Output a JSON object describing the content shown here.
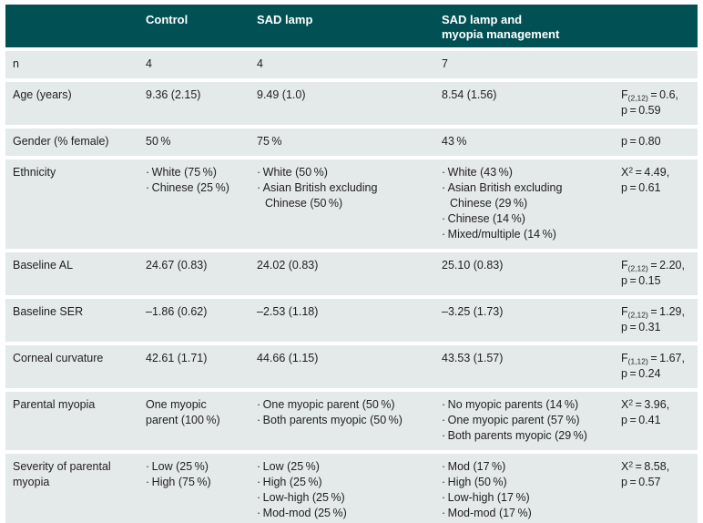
{
  "colors": {
    "header_bg": "#005054",
    "row_bg": "#e4e9ea",
    "text": "#1f1f1f",
    "header_text": "#ffffff"
  },
  "header": {
    "col1": "",
    "col2": "Control",
    "col3": "SAD lamp",
    "col4_line1": "SAD lamp and",
    "col4_line2": "myopia management",
    "col5": ""
  },
  "rows": [
    {
      "label": "n",
      "groups": [
        {
          "bullets": false,
          "items": [
            "4"
          ]
        },
        {
          "bullets": false,
          "items": [
            "4"
          ]
        },
        {
          "bullets": false,
          "items": [
            "7"
          ]
        }
      ],
      "stat_lines": []
    },
    {
      "label": "Age (years)",
      "groups": [
        {
          "bullets": false,
          "items": [
            "9.36 (2.15)"
          ]
        },
        {
          "bullets": false,
          "items": [
            "9.49 (1.0)"
          ]
        },
        {
          "bullets": false,
          "items": [
            "8.54 (1.56)"
          ]
        }
      ],
      "stat_lines": [
        [
          {
            "t": "F"
          },
          {
            "sub": "(2,12)"
          },
          {
            "t": " = 0.6,"
          }
        ],
        [
          {
            "t": "p = 0.59"
          }
        ]
      ]
    },
    {
      "label": "Gender (% female)",
      "groups": [
        {
          "bullets": false,
          "items": [
            "50 %"
          ]
        },
        {
          "bullets": false,
          "items": [
            "75 %"
          ]
        },
        {
          "bullets": false,
          "items": [
            "43 %"
          ]
        }
      ],
      "stat_lines": [
        [
          {
            "t": "p = 0.80"
          }
        ]
      ]
    },
    {
      "label": "Ethnicity",
      "groups": [
        {
          "bullets": true,
          "items": [
            "White (75 %)",
            "Chinese (25 %)"
          ]
        },
        {
          "bullets": true,
          "items": [
            "White (50 %)",
            "Asian British excluding Chinese (50 %)"
          ]
        },
        {
          "bullets": true,
          "items": [
            "White (43 %)",
            "Asian British excluding Chinese (29 %)",
            "Chinese (14 %)",
            "Mixed/multiple (14 %)"
          ]
        }
      ],
      "stat_lines": [
        [
          {
            "t": "X"
          },
          {
            "sup": "2"
          },
          {
            "t": " = 4.49,"
          }
        ],
        [
          {
            "t": "p = 0.61"
          }
        ]
      ]
    },
    {
      "label": "Baseline AL",
      "groups": [
        {
          "bullets": false,
          "items": [
            "24.67 (0.83)"
          ]
        },
        {
          "bullets": false,
          "items": [
            "24.02 (0.83)"
          ]
        },
        {
          "bullets": false,
          "items": [
            "25.10 (0.83)"
          ]
        }
      ],
      "stat_lines": [
        [
          {
            "t": "F"
          },
          {
            "sub": "(2,12)"
          },
          {
            "t": " = 2.20,"
          }
        ],
        [
          {
            "t": "p = 0.15"
          }
        ]
      ]
    },
    {
      "label": "Baseline SER",
      "groups": [
        {
          "bullets": false,
          "items": [
            "–1.86 (0.62)"
          ]
        },
        {
          "bullets": false,
          "items": [
            "–2.53 (1.18)"
          ]
        },
        {
          "bullets": false,
          "items": [
            "–3.25 (1.73)"
          ]
        }
      ],
      "stat_lines": [
        [
          {
            "t": "F"
          },
          {
            "sub": "(2,12)"
          },
          {
            "t": " = 1.29,"
          }
        ],
        [
          {
            "t": "p = 0.31"
          }
        ]
      ]
    },
    {
      "label": "Corneal curvature",
      "groups": [
        {
          "bullets": false,
          "items": [
            "42.61 (1.71)"
          ]
        },
        {
          "bullets": false,
          "items": [
            "44.66 (1.15)"
          ]
        },
        {
          "bullets": false,
          "items": [
            "43.53 (1.57)"
          ]
        }
      ],
      "stat_lines": [
        [
          {
            "t": "F"
          },
          {
            "sub": "(1,12)"
          },
          {
            "t": " = 1.67,"
          }
        ],
        [
          {
            "t": "p = 0.24"
          }
        ]
      ]
    },
    {
      "label": "Parental myopia",
      "groups": [
        {
          "bullets": false,
          "items": [
            "One myopic parent (100 %)"
          ]
        },
        {
          "bullets": true,
          "items": [
            "One myopic parent (50 %)",
            "Both parents myopic (50 %)"
          ]
        },
        {
          "bullets": true,
          "items": [
            "No myopic parents (14 %)",
            "One myopic parent (57 %)",
            "Both parents myopic (29 %)"
          ]
        }
      ],
      "stat_lines": [
        [
          {
            "t": "X"
          },
          {
            "sup": "2"
          },
          {
            "t": " = 3.96,"
          }
        ],
        [
          {
            "t": "p = 0.41"
          }
        ]
      ]
    },
    {
      "label": "Severity of parental myopia",
      "groups": [
        {
          "bullets": true,
          "items": [
            "Low (25 %)",
            "High (75 %)"
          ]
        },
        {
          "bullets": true,
          "items": [
            "Low (25 %)",
            "High (25 %)",
            "Low-high (25 %)",
            "Mod-mod (25 %)"
          ]
        },
        {
          "bullets": true,
          "items": [
            "Mod (17 %)",
            "High (50 %)",
            "Low-high (17 %)",
            "Mod-mod (17 %)"
          ]
        }
      ],
      "stat_lines": [
        [
          {
            "t": "X"
          },
          {
            "sup": "2"
          },
          {
            "t": " = 8.58,"
          }
        ],
        [
          {
            "t": "p = 0.57"
          }
        ]
      ]
    }
  ]
}
